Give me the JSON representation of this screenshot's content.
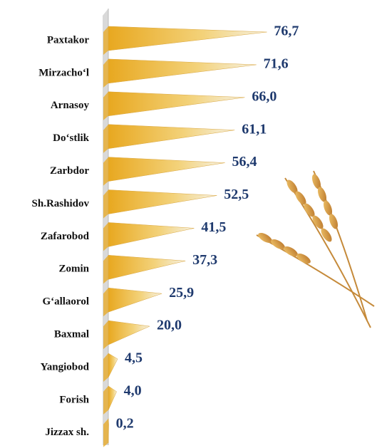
{
  "chart_data": {
    "type": "bar",
    "orientation": "horizontal",
    "categories": [
      "Paxtakor",
      "Mirzacho‘l",
      "Arnasoy",
      "Do‘stlik",
      "Zarbdor",
      "Sh.Rashidov",
      "Zafarobod",
      "Zomin",
      "G‘allaorol",
      "Baxmal",
      "Yangiobod",
      "Forish",
      "Jizzax sh."
    ],
    "values": [
      76.7,
      71.6,
      66.0,
      61.1,
      56.4,
      52.5,
      41.5,
      37.3,
      25.9,
      20.0,
      4.5,
      4.0,
      0.2
    ],
    "value_labels": [
      "76,7",
      "71,6",
      "66,0",
      "61,1",
      "56,4",
      "52,5",
      "41,5",
      "37,3",
      "25,9",
      "20,0",
      "4,5",
      "4,0",
      "0,2"
    ],
    "color": "#e8a820"
  }
}
